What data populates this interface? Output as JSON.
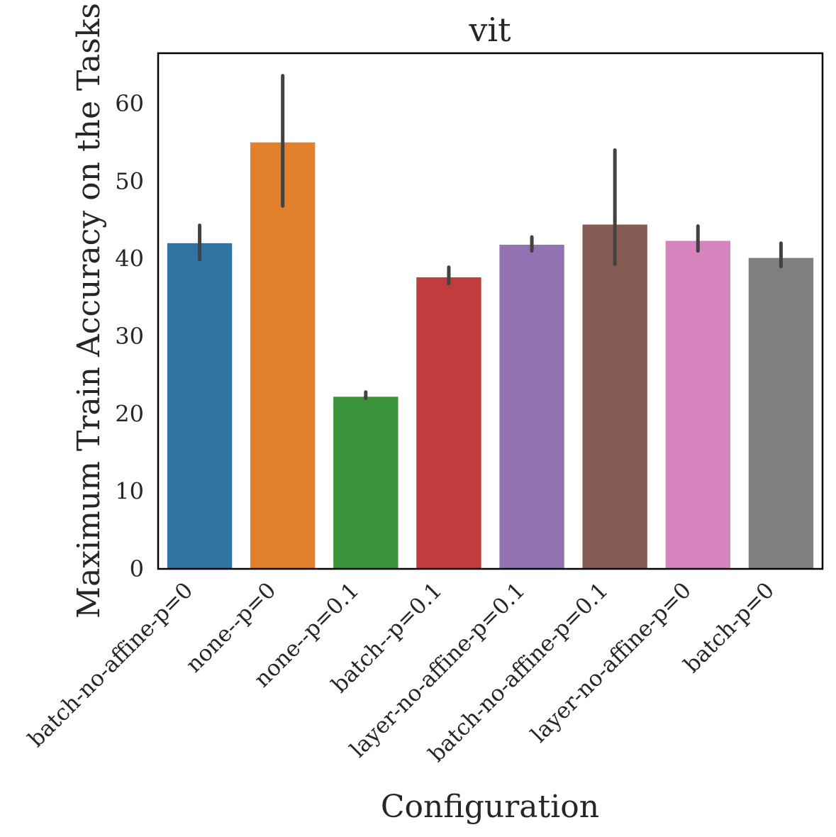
{
  "chart_data": {
    "type": "bar",
    "title": "vit",
    "xlabel": "Configuration",
    "ylabel": "Maximum Train Accuracy on the Tasks",
    "ylim": [
      0,
      66.5
    ],
    "yticks": [
      0,
      10,
      20,
      30,
      40,
      50,
      60
    ],
    "grid": false,
    "categories": [
      "batch-no-affine-p=0",
      "none--p=0",
      "none--p=0.1",
      "batch--p=0.1",
      "layer-no-affine-p=0.1",
      "batch-no-affine-p=0.1",
      "layer-no-affine-p=0",
      "batch-p=0"
    ],
    "values": [
      42.0,
      55.0,
      22.2,
      37.6,
      41.8,
      44.4,
      42.3,
      40.1
    ],
    "error_low": [
      39.9,
      46.8,
      22.0,
      36.8,
      41.0,
      39.3,
      41.0,
      39.0
    ],
    "error_high": [
      44.3,
      63.6,
      22.8,
      38.9,
      42.8,
      54.0,
      44.2,
      42.0
    ],
    "colors": [
      "#3274a1",
      "#e1812c",
      "#3a923a",
      "#c03d3e",
      "#9372b2",
      "#845b53",
      "#d684bd",
      "#7f7f7f"
    ],
    "error_color": "#424242"
  }
}
